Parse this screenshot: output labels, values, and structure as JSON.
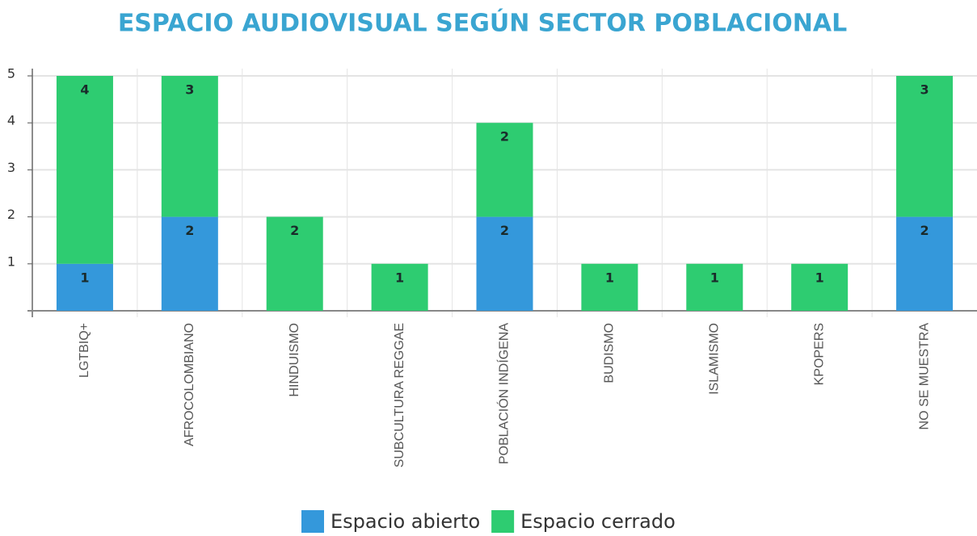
{
  "chart_data": {
    "type": "stacked_bar",
    "title": "ESPACIO AUDIOVISUAL SEGÚN SECTOR POBLACIONAL",
    "categories": [
      "LGTBIQ+",
      "AFROCOLOMBIANO",
      "HINDUISMO",
      "SUBCULTURA REGGAE",
      "POBLACIÓN INDÍGENA",
      "BUDISMO",
      "ISLAMISMO",
      "KPOPERS",
      "NO SE MUESTRA"
    ],
    "series": [
      {
        "name": "Espacio abierto",
        "color": "#3498db",
        "values": [
          1,
          2,
          0,
          0,
          2,
          0,
          0,
          0,
          2
        ]
      },
      {
        "name": "Espacio cerrado",
        "color": "#2ecc71",
        "values": [
          4,
          3,
          2,
          1,
          2,
          1,
          1,
          1,
          3
        ]
      }
    ],
    "ylim": [
      0,
      5
    ],
    "yticks": [
      1,
      2,
      3,
      4,
      5
    ],
    "grid": true
  }
}
